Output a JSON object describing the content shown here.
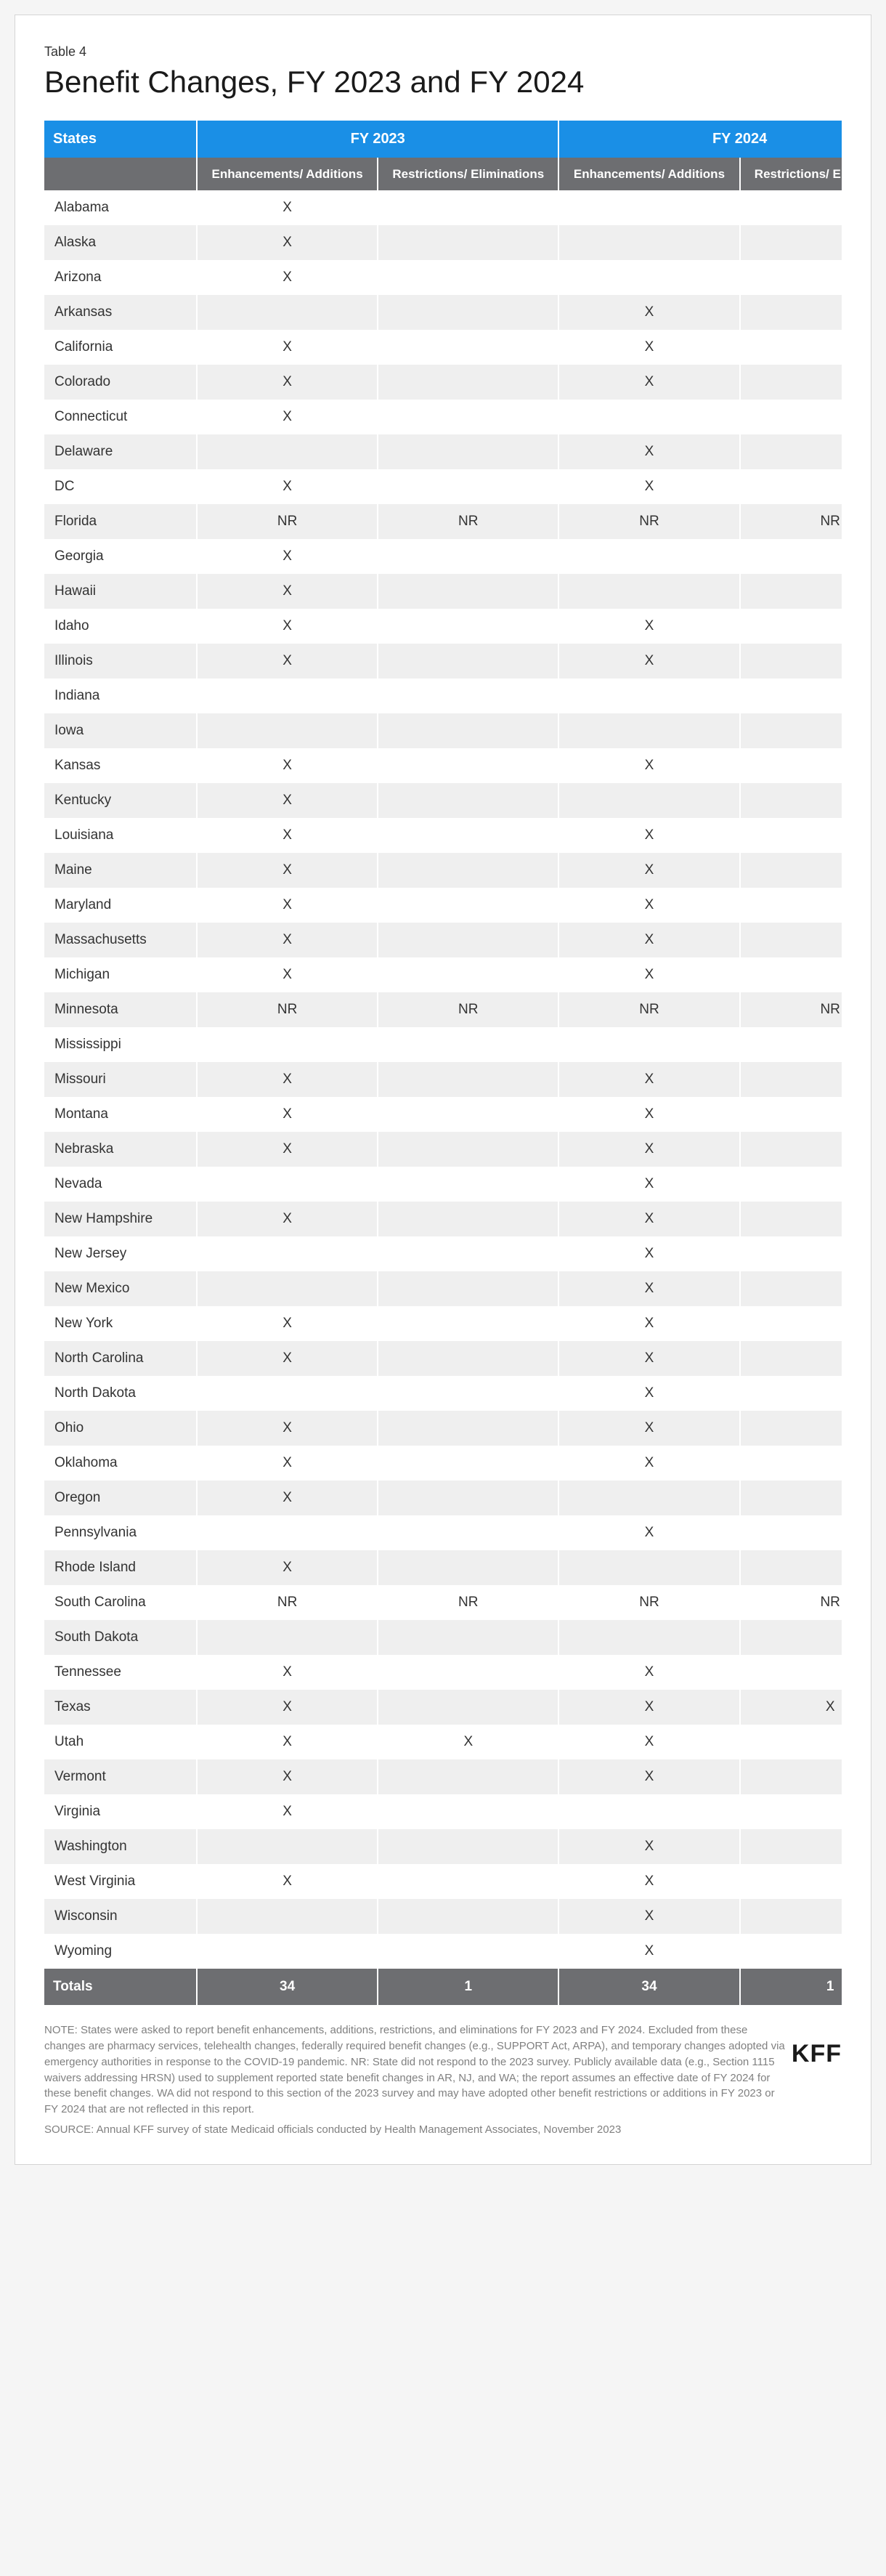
{
  "meta": {
    "tableLabel": "Table 4",
    "title": "Benefit Changes, FY 2023 and FY 2024"
  },
  "headers": {
    "colStates": "States",
    "groupFY2023": "FY 2023",
    "groupFY2024": "FY 2024",
    "subEnhance": "Enhancements/\nAdditions",
    "subRestrict": "Restrictions/\nEliminations"
  },
  "rows": [
    {
      "state": "Alabama",
      "e23": "X",
      "r23": "",
      "e24": "",
      "r24": ""
    },
    {
      "state": "Alaska",
      "e23": "X",
      "r23": "",
      "e24": "",
      "r24": ""
    },
    {
      "state": "Arizona",
      "e23": "X",
      "r23": "",
      "e24": "",
      "r24": ""
    },
    {
      "state": "Arkansas",
      "e23": "",
      "r23": "",
      "e24": "X",
      "r24": ""
    },
    {
      "state": "California",
      "e23": "X",
      "r23": "",
      "e24": "X",
      "r24": ""
    },
    {
      "state": "Colorado",
      "e23": "X",
      "r23": "",
      "e24": "X",
      "r24": ""
    },
    {
      "state": "Connecticut",
      "e23": "X",
      "r23": "",
      "e24": "",
      "r24": ""
    },
    {
      "state": "Delaware",
      "e23": "",
      "r23": "",
      "e24": "X",
      "r24": ""
    },
    {
      "state": "DC",
      "e23": "X",
      "r23": "",
      "e24": "X",
      "r24": ""
    },
    {
      "state": "Florida",
      "e23": "NR",
      "r23": "NR",
      "e24": "NR",
      "r24": "NR"
    },
    {
      "state": "Georgia",
      "e23": "X",
      "r23": "",
      "e24": "",
      "r24": ""
    },
    {
      "state": "Hawaii",
      "e23": "X",
      "r23": "",
      "e24": "",
      "r24": ""
    },
    {
      "state": "Idaho",
      "e23": "X",
      "r23": "",
      "e24": "X",
      "r24": ""
    },
    {
      "state": "Illinois",
      "e23": "X",
      "r23": "",
      "e24": "X",
      "r24": ""
    },
    {
      "state": "Indiana",
      "e23": "",
      "r23": "",
      "e24": "",
      "r24": ""
    },
    {
      "state": "Iowa",
      "e23": "",
      "r23": "",
      "e24": "",
      "r24": ""
    },
    {
      "state": "Kansas",
      "e23": "X",
      "r23": "",
      "e24": "X",
      "r24": ""
    },
    {
      "state": "Kentucky",
      "e23": "X",
      "r23": "",
      "e24": "",
      "r24": ""
    },
    {
      "state": "Louisiana",
      "e23": "X",
      "r23": "",
      "e24": "X",
      "r24": ""
    },
    {
      "state": "Maine",
      "e23": "X",
      "r23": "",
      "e24": "X",
      "r24": ""
    },
    {
      "state": "Maryland",
      "e23": "X",
      "r23": "",
      "e24": "X",
      "r24": ""
    },
    {
      "state": "Massachusetts",
      "e23": "X",
      "r23": "",
      "e24": "X",
      "r24": ""
    },
    {
      "state": "Michigan",
      "e23": "X",
      "r23": "",
      "e24": "X",
      "r24": ""
    },
    {
      "state": "Minnesota",
      "e23": "NR",
      "r23": "NR",
      "e24": "NR",
      "r24": "NR"
    },
    {
      "state": "Mississippi",
      "e23": "",
      "r23": "",
      "e24": "",
      "r24": ""
    },
    {
      "state": "Missouri",
      "e23": "X",
      "r23": "",
      "e24": "X",
      "r24": ""
    },
    {
      "state": "Montana",
      "e23": "X",
      "r23": "",
      "e24": "X",
      "r24": ""
    },
    {
      "state": "Nebraska",
      "e23": "X",
      "r23": "",
      "e24": "X",
      "r24": ""
    },
    {
      "state": "Nevada",
      "e23": "",
      "r23": "",
      "e24": "X",
      "r24": ""
    },
    {
      "state": "New Hampshire",
      "e23": "X",
      "r23": "",
      "e24": "X",
      "r24": ""
    },
    {
      "state": "New Jersey",
      "e23": "",
      "r23": "",
      "e24": "X",
      "r24": ""
    },
    {
      "state": "New Mexico",
      "e23": "",
      "r23": "",
      "e24": "X",
      "r24": ""
    },
    {
      "state": "New York",
      "e23": "X",
      "r23": "",
      "e24": "X",
      "r24": ""
    },
    {
      "state": "North Carolina",
      "e23": "X",
      "r23": "",
      "e24": "X",
      "r24": ""
    },
    {
      "state": "North Dakota",
      "e23": "",
      "r23": "",
      "e24": "X",
      "r24": ""
    },
    {
      "state": "Ohio",
      "e23": "X",
      "r23": "",
      "e24": "X",
      "r24": ""
    },
    {
      "state": "Oklahoma",
      "e23": "X",
      "r23": "",
      "e24": "X",
      "r24": ""
    },
    {
      "state": "Oregon",
      "e23": "X",
      "r23": "",
      "e24": "",
      "r24": ""
    },
    {
      "state": "Pennsylvania",
      "e23": "",
      "r23": "",
      "e24": "X",
      "r24": ""
    },
    {
      "state": "Rhode Island",
      "e23": "X",
      "r23": "",
      "e24": "",
      "r24": ""
    },
    {
      "state": "South Carolina",
      "e23": "NR",
      "r23": "NR",
      "e24": "NR",
      "r24": "NR"
    },
    {
      "state": "South Dakota",
      "e23": "",
      "r23": "",
      "e24": "",
      "r24": ""
    },
    {
      "state": "Tennessee",
      "e23": "X",
      "r23": "",
      "e24": "X",
      "r24": ""
    },
    {
      "state": "Texas",
      "e23": "X",
      "r23": "",
      "e24": "X",
      "r24": "X"
    },
    {
      "state": "Utah",
      "e23": "X",
      "r23": "X",
      "e24": "X",
      "r24": ""
    },
    {
      "state": "Vermont",
      "e23": "X",
      "r23": "",
      "e24": "X",
      "r24": ""
    },
    {
      "state": "Virginia",
      "e23": "X",
      "r23": "",
      "e24": "",
      "r24": ""
    },
    {
      "state": "Washington",
      "e23": "",
      "r23": "",
      "e24": "X",
      "r24": ""
    },
    {
      "state": "West Virginia",
      "e23": "X",
      "r23": "",
      "e24": "X",
      "r24": ""
    },
    {
      "state": "Wisconsin",
      "e23": "",
      "r23": "",
      "e24": "X",
      "r24": ""
    },
    {
      "state": "Wyoming",
      "e23": "",
      "r23": "",
      "e24": "X",
      "r24": ""
    }
  ],
  "totals": {
    "label": "Totals",
    "e23": "34",
    "r23": "1",
    "e24": "34",
    "r24": "1"
  },
  "footer": {
    "note": "NOTE: States were asked to report benefit enhancements, additions, restrictions, and eliminations for FY 2023 and FY 2024. Excluded from these changes are pharmacy services, telehealth changes, federally required benefit changes (e.g., SUPPORT Act, ARPA), and temporary changes adopted via emergency authorities in response to the COVID-19 pandemic. NR: State did not respond to the 2023 survey. Publicly available data (e.g., Section 1115 waivers addressing HRSN) used to supplement reported state benefit changes in AR, NJ, and WA; the report assumes an effective date of FY 2024 for these benefit changes. WA did not respond to this section of the 2023 survey and may have adopted other benefit restrictions or additions in FY 2023 or FY 2024 that are not reflected in this report.",
    "source": "SOURCE: Annual KFF survey of state Medicaid officials conducted by Health Management Associates, November 2023",
    "logo": "KFF"
  },
  "style": {
    "headerBg": "#1a8fe6",
    "subHeaderBg": "#6d6e71",
    "rowAltBg": "#efefef",
    "rowBg": "#ffffff",
    "textColor": "#333333",
    "noteColor": "#808080",
    "titleFontSize": 42,
    "bodyFontSize": 19,
    "headerFontSize": 20,
    "subHeaderFontSize": 17,
    "noteFontSize": 15
  }
}
